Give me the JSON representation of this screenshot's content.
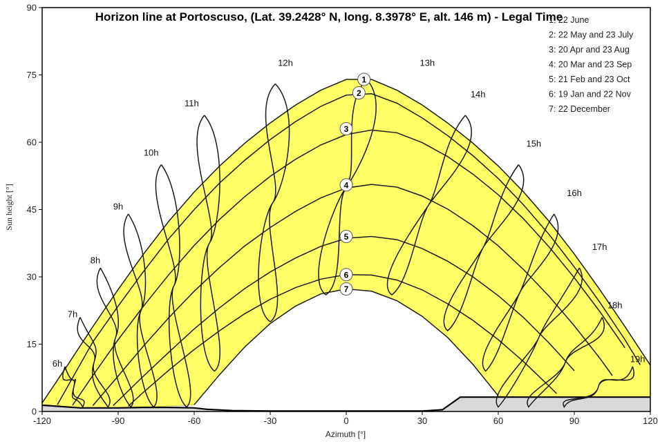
{
  "chart_data": {
    "type": "line",
    "title": "Horizon line at Portoscuso, (Lat. 39.2428° N, long. 8.3978° E, alt. 146 m) - Legal Time",
    "xlabel": "Azimuth [°]",
    "ylabel": "Sun height [°]",
    "xlim": [
      -120,
      120
    ],
    "ylim": [
      0,
      90
    ],
    "x_ticks": [
      "-120",
      "-90",
      "-60",
      "-30",
      "0",
      "30",
      "60",
      "90",
      "120"
    ],
    "y_ticks": [
      "0",
      "15",
      "30",
      "45",
      "60",
      "75",
      "90"
    ],
    "grid": false,
    "legend_position": "top-right",
    "colors": {
      "band": "#ffff66",
      "band_edge": "#d4c830",
      "curve": "#1a1a1a",
      "horizon_fill": "#d9d9d9"
    },
    "legend": [
      "1: 22 June",
      "2: 22 May and 23 July",
      "3: 20 Apr and 23 Aug",
      "4: 20 Mar and 23 Sep",
      "5: 21 Feb and 23 Oct",
      "6: 19 Jan and 22 Nov",
      "7: 22 December"
    ],
    "date_markers": [
      "1",
      "2",
      "3",
      "4",
      "5",
      "6",
      "7"
    ],
    "series": [
      {
        "name": "1",
        "peak": 74,
        "x": [
          -120,
          -110,
          -100,
          -90,
          -80,
          -70,
          -60,
          -50,
          -40,
          -30,
          -20,
          -10,
          0,
          10,
          20,
          30,
          40,
          50,
          60,
          70,
          80,
          90,
          100,
          110,
          120
        ],
        "y": [
          1.9,
          10.3,
          18.9,
          27.2,
          35.1,
          42.4,
          48.9,
          54.7,
          59.8,
          64.3,
          68.3,
          71.6,
          74.0,
          74.0,
          71.6,
          68.3,
          64.3,
          59.8,
          54.7,
          48.9,
          42.4,
          35.1,
          27.2,
          18.9,
          10.3
        ]
      },
      {
        "name": "2",
        "peak": 71,
        "x": [
          -114,
          -100,
          -90,
          -80,
          -70,
          -60,
          -50,
          -40,
          -30,
          -20,
          -10,
          0,
          10,
          20,
          30,
          40,
          50,
          60,
          70,
          80,
          90,
          100,
          110,
          116
        ],
        "y": [
          1.5,
          15.5,
          23.5,
          31.2,
          38.5,
          45.0,
          50.9,
          56.0,
          60.6,
          64.6,
          68.0,
          70.5,
          70.8,
          68.7,
          65.4,
          61.5,
          57.0,
          51.9,
          46.0,
          39.5,
          32.2,
          24.4,
          16.0,
          10.4
        ]
      },
      {
        "name": "3",
        "peak": 63,
        "x": [
          -108,
          -100,
          -90,
          -80,
          -70,
          -60,
          -50,
          -40,
          -30,
          -20,
          -10,
          0,
          10,
          20,
          30,
          40,
          50,
          60,
          70,
          80,
          90,
          100,
          110
        ],
        "y": [
          1.4,
          8.0,
          16.0,
          23.5,
          30.5,
          37.0,
          42.8,
          47.9,
          52.4,
          56.2,
          59.4,
          61.7,
          62.7,
          62.1,
          59.9,
          56.8,
          52.9,
          48.3,
          42.9,
          36.7,
          29.8,
          22.3,
          14.2
        ]
      },
      {
        "name": "4",
        "peak": 50.5,
        "x": [
          -100,
          -90,
          -80,
          -70,
          -60,
          -50,
          -40,
          -30,
          -20,
          -10,
          0,
          10,
          20,
          30,
          40,
          50,
          60,
          70,
          80,
          90,
          100,
          105
        ],
        "y": [
          1.3,
          7.9,
          14.6,
          20.9,
          26.8,
          32.1,
          36.9,
          41.0,
          44.6,
          47.6,
          49.8,
          50.6,
          50.0,
          48.0,
          45.1,
          41.4,
          36.9,
          31.6,
          25.7,
          19.1,
          11.9,
          8.0
        ]
      },
      {
        "name": "5",
        "peak": 39,
        "x": [
          -92,
          -80,
          -70,
          -60,
          -50,
          -40,
          -30,
          -20,
          -10,
          0,
          10,
          20,
          30,
          40,
          50,
          60,
          70,
          80,
          90
        ],
        "y": [
          1.3,
          7.9,
          13.2,
          18.4,
          23.1,
          27.4,
          31.1,
          34.2,
          36.8,
          38.6,
          39.0,
          38.3,
          36.3,
          33.5,
          30.0,
          25.8,
          20.9,
          15.3,
          9.1
        ]
      },
      {
        "name": "6",
        "peak": 30.5,
        "x": [
          -86,
          -80,
          -70,
          -60,
          -50,
          -40,
          -30,
          -20,
          -10,
          0,
          10,
          20,
          30,
          40,
          50,
          60,
          70,
          80,
          83
        ],
        "y": [
          1.2,
          4.3,
          9.2,
          13.8,
          18.0,
          21.8,
          25.0,
          27.6,
          29.5,
          30.5,
          30.4,
          29.3,
          27.1,
          24.0,
          20.3,
          16.0,
          11.1,
          5.7,
          4.0
        ]
      },
      {
        "name": "7",
        "peak": 27.3,
        "x": [
          -60,
          -50,
          -40,
          -30,
          -20,
          -10,
          0,
          10,
          20,
          30,
          40,
          50,
          60
        ],
        "y": [
          1.5,
          8.2,
          14.4,
          19.6,
          23.5,
          26.2,
          27.3,
          26.8,
          24.7,
          21.2,
          16.5,
          10.5,
          3.5
        ]
      }
    ],
    "hour_labels": [
      "6h",
      "7h",
      "8h",
      "9h",
      "10h",
      "11h",
      "12h",
      "13h",
      "14h",
      "15h",
      "16h",
      "17h",
      "18h",
      "19h"
    ],
    "hour_curves": [
      {
        "hour": "6h",
        "top": [
          -111,
          10
        ],
        "bottom": [
          -104,
          1
        ]
      },
      {
        "hour": "7h",
        "top": [
          -105,
          21
        ],
        "bottom": [
          -94,
          1
        ]
      },
      {
        "hour": "8h",
        "top": [
          -97,
          32
        ],
        "bottom": [
          -85,
          1
        ]
      },
      {
        "hour": "9h",
        "top": [
          -86,
          44
        ],
        "bottom": [
          -76,
          1
        ]
      },
      {
        "hour": "10h",
        "top": [
          -73,
          55
        ],
        "bottom": [
          -63,
          1
        ]
      },
      {
        "hour": "11h",
        "top": [
          -56,
          66
        ],
        "bottom": [
          -52,
          9
        ]
      },
      {
        "hour": "12h",
        "top": [
          -28,
          73
        ],
        "bottom": [
          -30,
          20
        ]
      },
      {
        "hour": "13h",
        "top": [
          8,
          74
        ],
        "bottom": [
          -8,
          26
        ]
      },
      {
        "hour": "14h",
        "top": [
          47,
          66
        ],
        "bottom": [
          18,
          26
        ]
      },
      {
        "hour": "15h",
        "top": [
          68,
          55
        ],
        "bottom": [
          40,
          18
        ]
      },
      {
        "hour": "16h",
        "top": [
          82,
          44
        ],
        "bottom": [
          55,
          9
        ]
      },
      {
        "hour": "17h",
        "top": [
          92,
          32
        ],
        "bottom": [
          60,
          1
        ]
      },
      {
        "hour": "18h",
        "top": [
          101,
          21
        ],
        "bottom": [
          72,
          1
        ]
      },
      {
        "hour": "19h",
        "top": [
          113,
          10
        ],
        "bottom": [
          86,
          1
        ]
      }
    ],
    "horizon": {
      "x": [
        -120,
        -105,
        -90,
        -80,
        -70,
        -60,
        -55,
        -45,
        -30,
        30,
        38,
        45,
        120
      ],
      "y": [
        1.4,
        0.8,
        0.8,
        0.9,
        0.9,
        0.8,
        0.5,
        0.2,
        0.1,
        0.1,
        0.4,
        3.2,
        3.2
      ]
    }
  }
}
